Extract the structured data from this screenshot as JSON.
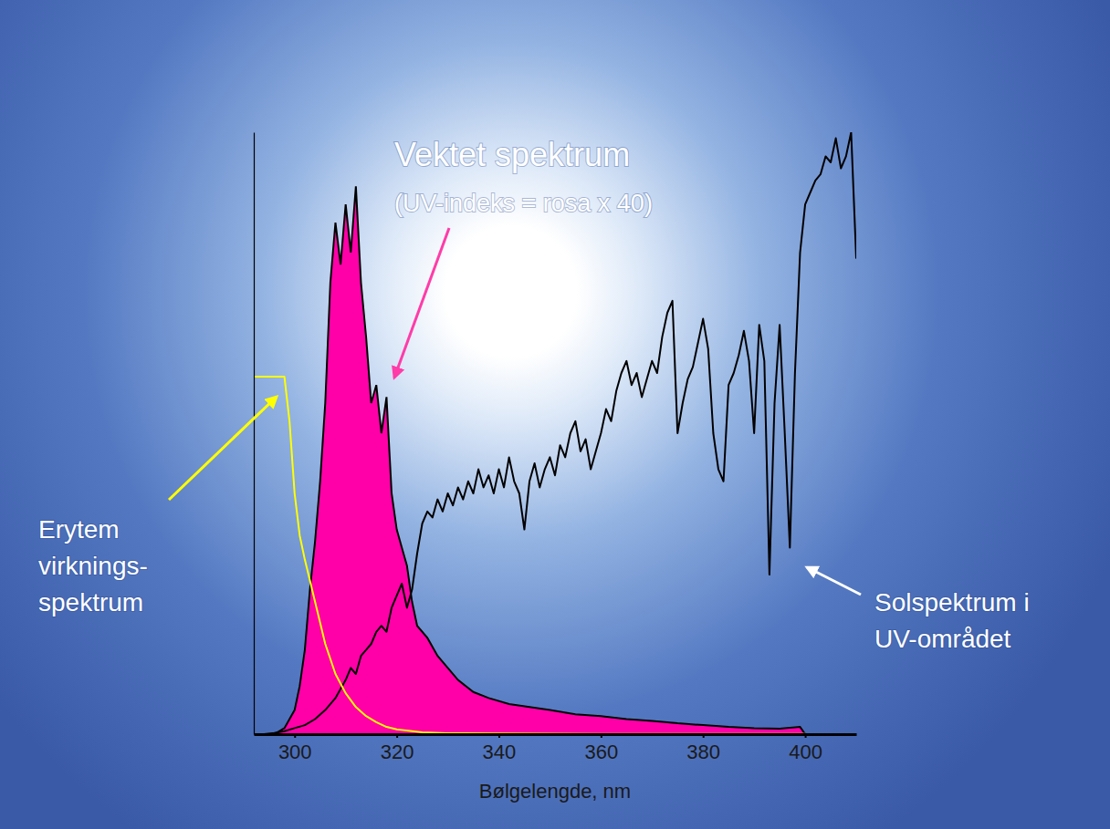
{
  "chart_data": {
    "type": "line",
    "xlabel": "Bølgelengde, nm",
    "xlim": [
      292,
      410
    ],
    "xticks": [
      300,
      320,
      340,
      360,
      380,
      400
    ],
    "ylim": [
      0,
      100
    ],
    "tick_labels": "x",
    "series": [
      {
        "type": "area",
        "color": "#ff00a8",
        "label": [
          "Vektet spektrum",
          "(UV-indeks = rosa x 40)"
        ],
        "x": [
          296,
          298,
          300,
          301,
          302,
          303,
          304,
          305,
          306,
          307,
          308,
          309,
          310,
          311,
          312,
          313,
          314,
          315,
          316,
          317,
          318,
          319,
          320,
          321,
          322,
          323,
          324,
          326,
          328,
          330,
          332,
          335,
          338,
          342,
          346,
          350,
          355,
          360,
          365,
          370,
          375,
          380,
          385,
          390,
          395,
          399,
          400
        ],
        "values": [
          0,
          1,
          4,
          8,
          14,
          24,
          32,
          42,
          55,
          75,
          85,
          78,
          88,
          80,
          91,
          75,
          66,
          55,
          58,
          50,
          56,
          40,
          34,
          31,
          28,
          22,
          18,
          16,
          13,
          11,
          9,
          7,
          6,
          5,
          4.5,
          4,
          3.3,
          3,
          2.5,
          2.2,
          1.8,
          1.5,
          1.2,
          1,
          0.9,
          1.2,
          0
        ]
      },
      {
        "type": "line",
        "color": "#000000",
        "label": [
          "Solspektrum i",
          "UV-området"
        ],
        "x": [
          292,
          294,
          296,
          298,
          300,
          302,
          304,
          306,
          308,
          310,
          311,
          312,
          313,
          314,
          315,
          316,
          317,
          318,
          319,
          320,
          321,
          322,
          323,
          324,
          325,
          326,
          327,
          328,
          329,
          330,
          331,
          332,
          333,
          334,
          335,
          336,
          337,
          338,
          339,
          340,
          341,
          342,
          343,
          344,
          345,
          346,
          347,
          348,
          349,
          350,
          351,
          352,
          353,
          354,
          355,
          356,
          357,
          358,
          359,
          360,
          361,
          362,
          363,
          364,
          365,
          366,
          367,
          368,
          369,
          370,
          371,
          372,
          373,
          374,
          375,
          376,
          377,
          378,
          379,
          380,
          381,
          382,
          383,
          384,
          385,
          386,
          387,
          388,
          389,
          390,
          391,
          392,
          393,
          394,
          395,
          396,
          397,
          398,
          399,
          400,
          401,
          402,
          403,
          404,
          405,
          406,
          407,
          408,
          409,
          410
        ],
        "values": [
          0,
          0,
          0.2,
          0.5,
          1,
          1.5,
          2.5,
          4,
          6,
          9,
          11,
          10,
          13,
          14,
          15,
          17,
          18,
          17,
          21,
          23,
          25,
          21,
          24,
          30,
          35,
          37,
          36,
          39,
          37,
          40,
          38,
          41,
          39,
          42,
          40,
          44,
          41,
          43,
          40,
          44,
          41,
          46,
          42,
          40,
          34,
          42,
          45,
          41,
          44,
          46,
          43,
          48,
          46,
          50,
          52,
          47,
          49,
          44,
          47,
          50,
          54,
          52,
          57,
          60,
          62,
          58,
          60,
          56,
          59,
          62,
          60,
          66,
          70,
          72,
          50,
          55,
          59,
          61,
          65,
          69,
          64,
          50,
          44,
          42,
          58,
          60,
          63,
          67,
          62,
          50,
          68,
          62,
          26.5,
          55,
          68,
          50,
          31,
          60,
          80,
          88,
          90,
          92,
          93,
          96,
          95,
          99,
          94,
          96,
          100,
          79
        ]
      },
      {
        "type": "line",
        "color": "#ffff00",
        "label": [
          "Erytem",
          "virknings-",
          "spektrum"
        ],
        "x": [
          292,
          298,
          299,
          300,
          301,
          302,
          304,
          306,
          308,
          310,
          312,
          314,
          316,
          318,
          320,
          325,
          330,
          340,
          360,
          380,
          400
        ],
        "values": [
          59.4,
          59.4,
          52,
          40,
          33,
          29,
          22,
          15,
          10,
          6.8,
          4.5,
          3,
          2,
          1.2,
          0.8,
          0.3,
          0.15,
          0.1,
          0.05,
          0.03,
          0.02
        ]
      }
    ]
  }
}
